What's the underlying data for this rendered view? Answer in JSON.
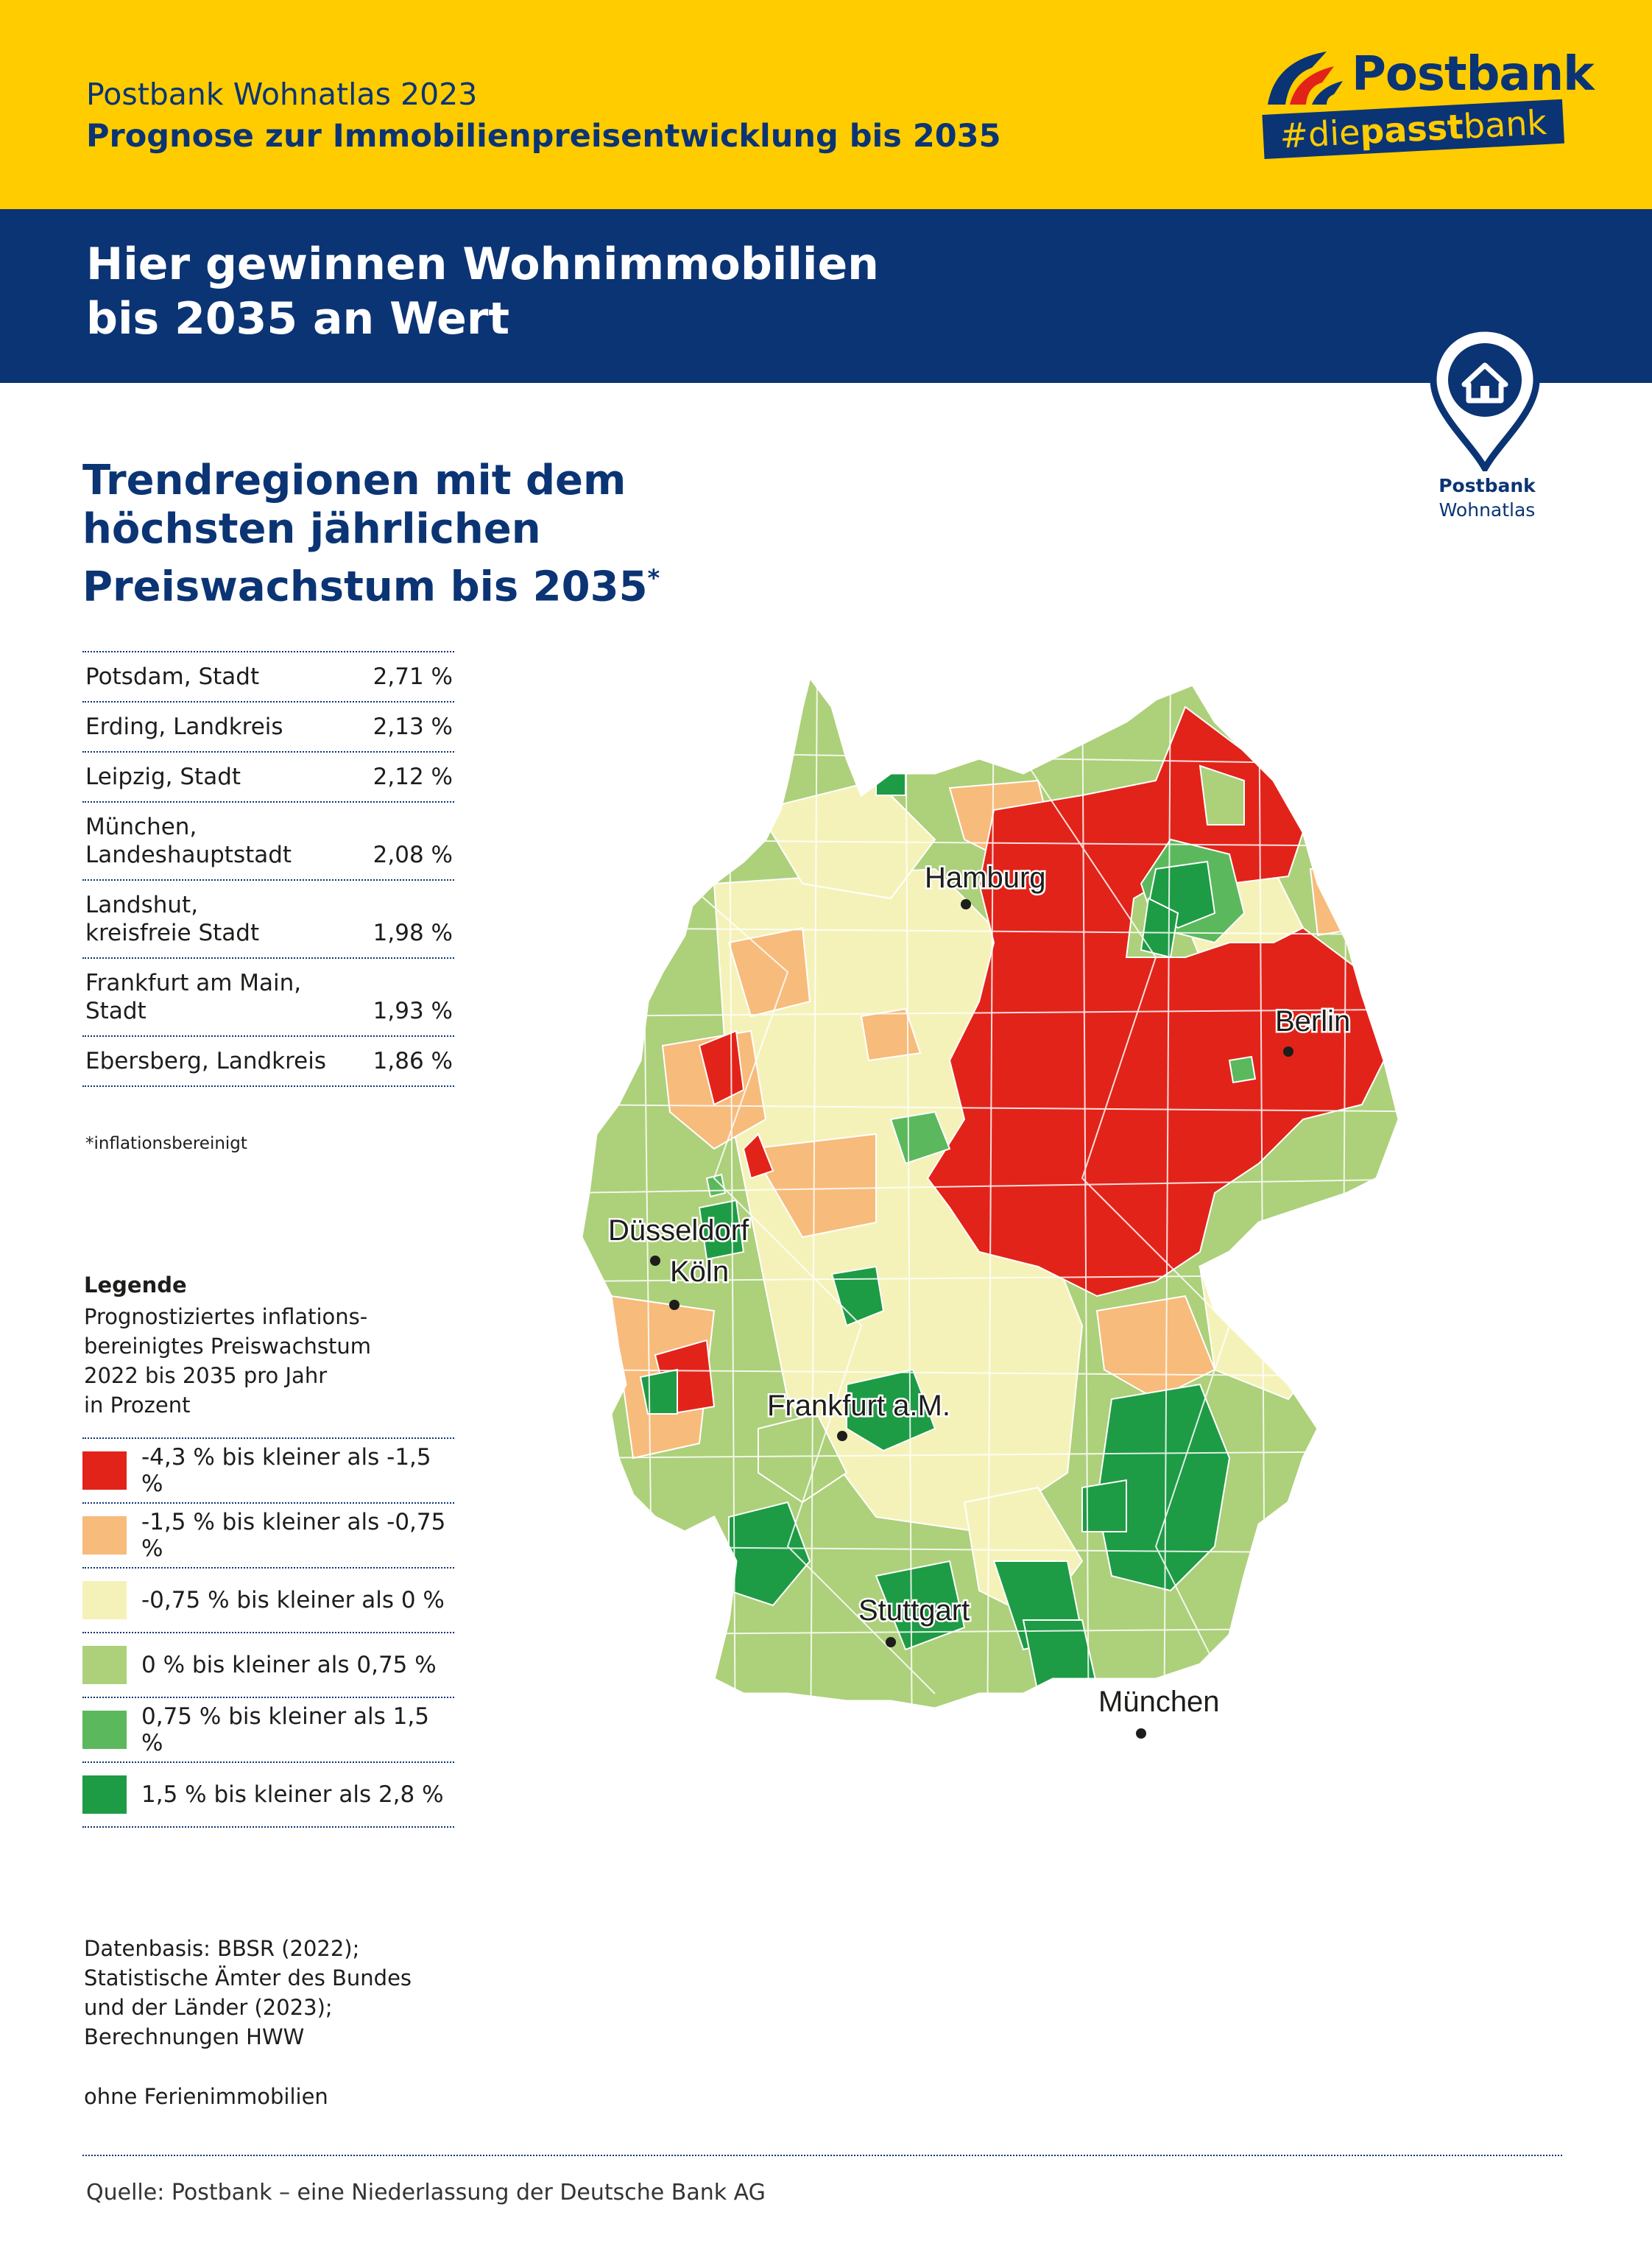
{
  "header": {
    "line1": "Postbank Wohnatlas 2023",
    "line2": "Prognose zur Immobilienpreisentwicklung bis 2035",
    "logo_text": "Postbank",
    "hashtag_pre": "#die",
    "hashtag_bold": "passt",
    "hashtag_post": "bank"
  },
  "banner": {
    "headline_line1": "Hier gewinnen Wohnimmobilien",
    "headline_line2": "bis 2035 an Wert"
  },
  "badge": {
    "icon": "location-pin-house-icon",
    "line1": "Postbank",
    "line2": "Wohnatlas"
  },
  "ranking": {
    "title_line1": "Trendregionen mit dem",
    "title_line2": "höchsten jährlichen",
    "title_line3": "Preiswachstum bis 2035",
    "title_marker": "*",
    "rows": [
      {
        "name": "Potsdam, Stadt",
        "value": "2,71 %"
      },
      {
        "name": "Erding, Landkreis",
        "value": "2,13 %"
      },
      {
        "name": "Leipzig, Stadt",
        "value": "2,12 %"
      },
      {
        "name": "München,\nLandeshauptstadt",
        "value": "2,08 %"
      },
      {
        "name": "Landshut,\nkreisfreie Stadt",
        "value": "1,98 %"
      },
      {
        "name": "Frankfurt am Main,\nStadt",
        "value": "1,93 %"
      },
      {
        "name": "Ebersberg, Landkreis",
        "value": "1,86 %"
      }
    ],
    "footnote": "*inflationsbereinigt"
  },
  "legend": {
    "title": "Legende",
    "subtitle_lines": [
      "Prognostiziertes inflations-",
      "bereinigtes Preiswachstum",
      "2022 bis 2035 pro Jahr",
      "in Prozent"
    ],
    "items": [
      {
        "label": "-4,3 % bis kleiner als -1,5 %",
        "color": "#e2231a"
      },
      {
        "label": "-1,5 % bis kleiner als -0,75 %",
        "color": "#f7bb7b"
      },
      {
        "label": "-0,75 % bis kleiner als 0 %",
        "color": "#f4f2b9"
      },
      {
        "label": "0 % bis kleiner als 0,75 %",
        "color": "#add07a"
      },
      {
        "label": "0,75 % bis kleiner als 1,5 %",
        "color": "#5cb85c"
      },
      {
        "label": "1,5 % bis kleiner als 2,8 %",
        "color": "#1e9b45"
      }
    ]
  },
  "sources": {
    "lines": [
      "Datenbasis: BBSR (2022);",
      "Statistische Ämter des Bundes",
      "und der Länder (2023);",
      "Berechnungen HWW"
    ],
    "note": "ohne Ferienimmobilien",
    "footer": "Quelle: Postbank – eine Niederlassung der Deutsche Bank AG"
  },
  "map": {
    "cities": [
      {
        "name": "Hamburg"
      },
      {
        "name": "Berlin"
      },
      {
        "name": "Düsseldorf"
      },
      {
        "name": "Köln"
      },
      {
        "name": "Frankfurt a.M."
      },
      {
        "name": "Stuttgart"
      },
      {
        "name": "München"
      }
    ]
  },
  "colors": {
    "brand_yellow": "#ffcc00",
    "brand_blue": "#0b3474"
  }
}
